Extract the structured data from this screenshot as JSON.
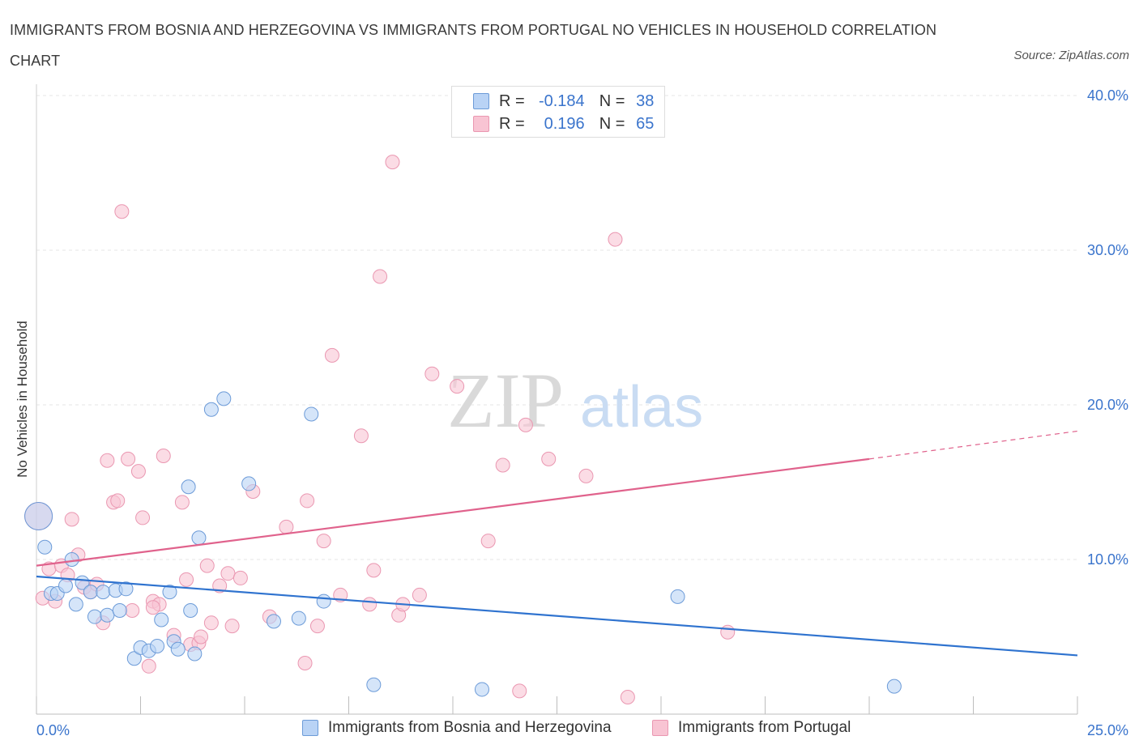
{
  "title": "IMMIGRANTS FROM BOSNIA AND HERZEGOVINA VS IMMIGRANTS FROM PORTUGAL NO VEHICLES IN HOUSEHOLD CORRELATION CHART",
  "source": "Source: ZipAtlas.com",
  "watermark": {
    "zip": "ZIP",
    "atlas": "atlas"
  },
  "legend": {
    "rows": [
      {
        "r_label": "R =",
        "r_value": "-0.184",
        "n_label": "N =",
        "n_value": "38"
      },
      {
        "r_label": "R =",
        "r_value": "0.196",
        "n_label": "N =",
        "n_value": "65"
      }
    ]
  },
  "colors": {
    "bosnia_fill": "#b9d3f5",
    "bosnia_stroke": "#6c9bd8",
    "bosnia_line": "#2f73cf",
    "portugal_fill": "#f8c4d3",
    "portugal_stroke": "#ea97b1",
    "portugal_line": "#e0628c",
    "tick_label": "#3a74cc",
    "grid": "#e6e6e6"
  },
  "chart_data": {
    "type": "scatter",
    "title": "IMMIGRANTS FROM BOSNIA AND HERZEGOVINA VS IMMIGRANTS FROM PORTUGAL NO VEHICLES IN HOUSEHOLD CORRELATION CHART",
    "xlabel": "",
    "ylabel": "No Vehicles in Household",
    "xlim": [
      0,
      25
    ],
    "ylim": [
      0,
      40
    ],
    "x_tick_labels": [
      "0.0%",
      "25.0%"
    ],
    "y_ticks": [
      10,
      20,
      30,
      40
    ],
    "y_tick_labels": [
      "10.0%",
      "20.0%",
      "30.0%",
      "40.0%"
    ],
    "grid": "horizontal dashed",
    "legend_position": "top-center",
    "series": [
      {
        "name": "Immigrants from Bosnia and Herzegovina",
        "R": -0.184,
        "N": 38,
        "trend": {
          "x": [
            0,
            25
          ],
          "y": [
            8.9,
            3.8
          ]
        },
        "points": [
          {
            "x": 0.05,
            "y": 12.8,
            "big": true
          },
          {
            "x": 0.2,
            "y": 10.8
          },
          {
            "x": 0.35,
            "y": 7.8
          },
          {
            "x": 0.5,
            "y": 7.8
          },
          {
            "x": 0.7,
            "y": 8.3
          },
          {
            "x": 0.85,
            "y": 10.0
          },
          {
            "x": 0.95,
            "y": 7.1
          },
          {
            "x": 1.1,
            "y": 8.5
          },
          {
            "x": 1.3,
            "y": 7.9
          },
          {
            "x": 1.4,
            "y": 6.3
          },
          {
            "x": 1.6,
            "y": 7.9
          },
          {
            "x": 1.7,
            "y": 6.4
          },
          {
            "x": 1.9,
            "y": 8.0
          },
          {
            "x": 2.0,
            "y": 6.7
          },
          {
            "x": 2.15,
            "y": 8.1
          },
          {
            "x": 2.35,
            "y": 3.6
          },
          {
            "x": 2.5,
            "y": 4.3
          },
          {
            "x": 2.7,
            "y": 4.1
          },
          {
            "x": 2.9,
            "y": 4.4
          },
          {
            "x": 3.0,
            "y": 6.1
          },
          {
            "x": 3.2,
            "y": 7.9
          },
          {
            "x": 3.3,
            "y": 4.7
          },
          {
            "x": 3.4,
            "y": 4.2
          },
          {
            "x": 3.65,
            "y": 14.7
          },
          {
            "x": 3.7,
            "y": 6.7
          },
          {
            "x": 3.8,
            "y": 3.9
          },
          {
            "x": 3.9,
            "y": 11.4
          },
          {
            "x": 4.5,
            "y": 20.4
          },
          {
            "x": 5.1,
            "y": 14.9
          },
          {
            "x": 5.7,
            "y": 6.0
          },
          {
            "x": 6.3,
            "y": 6.2
          },
          {
            "x": 6.6,
            "y": 19.4
          },
          {
            "x": 6.9,
            "y": 7.3
          },
          {
            "x": 8.1,
            "y": 1.9
          },
          {
            "x": 10.7,
            "y": 1.6
          },
          {
            "x": 15.4,
            "y": 7.6
          },
          {
            "x": 20.6,
            "y": 1.8
          },
          {
            "x": 4.2,
            "y": 19.7
          }
        ]
      },
      {
        "name": "Immigrants from Portugal",
        "R": 0.196,
        "N": 65,
        "trend": {
          "x": [
            0,
            20
          ],
          "y": [
            9.6,
            16.5
          ],
          "dashed_to": {
            "x": 25,
            "y": 18.3
          }
        },
        "points": [
          {
            "x": 0.05,
            "y": 12.8,
            "big": true
          },
          {
            "x": 0.15,
            "y": 7.5
          },
          {
            "x": 0.3,
            "y": 9.4
          },
          {
            "x": 0.45,
            "y": 7.3
          },
          {
            "x": 0.6,
            "y": 9.6
          },
          {
            "x": 0.75,
            "y": 9.0
          },
          {
            "x": 0.85,
            "y": 12.6
          },
          {
            "x": 1.0,
            "y": 10.3
          },
          {
            "x": 1.15,
            "y": 8.2
          },
          {
            "x": 1.3,
            "y": 7.9
          },
          {
            "x": 1.45,
            "y": 8.4
          },
          {
            "x": 1.6,
            "y": 5.9
          },
          {
            "x": 1.7,
            "y": 16.4
          },
          {
            "x": 1.85,
            "y": 13.7
          },
          {
            "x": 1.95,
            "y": 13.8
          },
          {
            "x": 2.05,
            "y": 32.5
          },
          {
            "x": 2.2,
            "y": 16.5
          },
          {
            "x": 2.3,
            "y": 6.7
          },
          {
            "x": 2.45,
            "y": 15.7
          },
          {
            "x": 2.55,
            "y": 12.7
          },
          {
            "x": 2.7,
            "y": 3.1
          },
          {
            "x": 2.8,
            "y": 7.3
          },
          {
            "x": 2.95,
            "y": 7.1
          },
          {
            "x": 3.05,
            "y": 16.7
          },
          {
            "x": 3.3,
            "y": 5.1
          },
          {
            "x": 3.5,
            "y": 13.7
          },
          {
            "x": 3.6,
            "y": 8.7
          },
          {
            "x": 3.7,
            "y": 4.5
          },
          {
            "x": 3.9,
            "y": 4.6
          },
          {
            "x": 3.95,
            "y": 5.0
          },
          {
            "x": 4.1,
            "y": 9.6
          },
          {
            "x": 4.2,
            "y": 5.9
          },
          {
            "x": 4.4,
            "y": 8.3
          },
          {
            "x": 4.6,
            "y": 9.1
          },
          {
            "x": 4.7,
            "y": 5.7
          },
          {
            "x": 4.9,
            "y": 8.8
          },
          {
            "x": 5.2,
            "y": 14.4
          },
          {
            "x": 5.6,
            "y": 6.3
          },
          {
            "x": 6.0,
            "y": 12.1
          },
          {
            "x": 6.45,
            "y": 3.3
          },
          {
            "x": 6.5,
            "y": 13.8
          },
          {
            "x": 6.75,
            "y": 5.7
          },
          {
            "x": 6.9,
            "y": 11.2
          },
          {
            "x": 7.1,
            "y": 23.2
          },
          {
            "x": 7.3,
            "y": 7.7
          },
          {
            "x": 7.8,
            "y": 18.0
          },
          {
            "x": 8.0,
            "y": 7.1
          },
          {
            "x": 8.1,
            "y": 9.3
          },
          {
            "x": 8.25,
            "y": 28.3
          },
          {
            "x": 8.55,
            "y": 35.7
          },
          {
            "x": 8.7,
            "y": 6.4
          },
          {
            "x": 8.8,
            "y": 7.1
          },
          {
            "x": 9.2,
            "y": 7.7
          },
          {
            "x": 9.5,
            "y": 22.0
          },
          {
            "x": 10.1,
            "y": 21.2
          },
          {
            "x": 10.85,
            "y": 11.2
          },
          {
            "x": 11.2,
            "y": 16.1
          },
          {
            "x": 11.6,
            "y": 1.5
          },
          {
            "x": 11.75,
            "y": 18.7
          },
          {
            "x": 12.3,
            "y": 16.5
          },
          {
            "x": 13.2,
            "y": 15.4
          },
          {
            "x": 13.9,
            "y": 30.7
          },
          {
            "x": 14.2,
            "y": 1.1
          },
          {
            "x": 16.6,
            "y": 5.3
          },
          {
            "x": 2.8,
            "y": 6.9
          }
        ]
      }
    ]
  }
}
